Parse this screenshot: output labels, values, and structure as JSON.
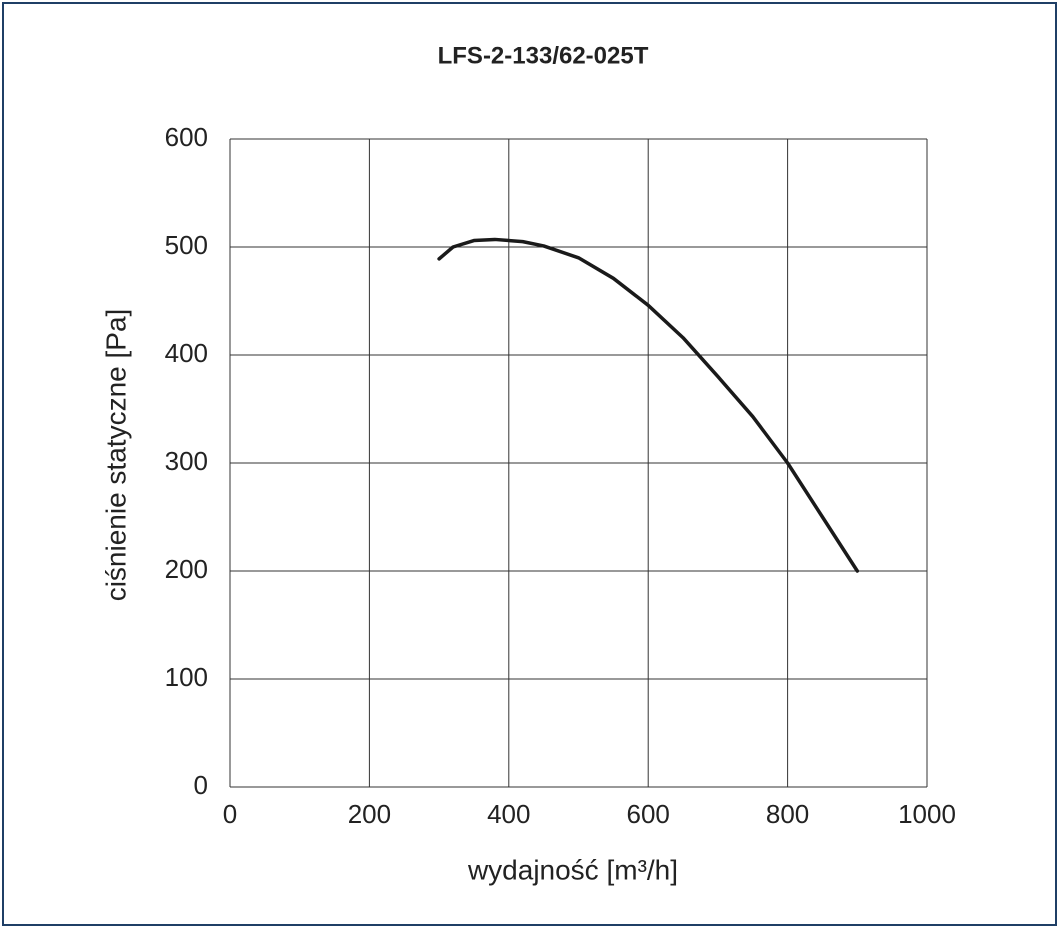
{
  "chart_data": {
    "type": "line",
    "title": "LFS-2-133/62-025T",
    "x_label": "wydajność [m³/h]",
    "y_label": "ciśnienie statyczne [Pa]",
    "x": [
      300,
      320,
      350,
      380,
      420,
      450,
      500,
      550,
      600,
      650,
      700,
      750,
      800,
      850,
      900
    ],
    "values": [
      489,
      500,
      506,
      507,
      505,
      501,
      490,
      471,
      446,
      416,
      380,
      343,
      300,
      250,
      200
    ],
    "color": "#1a1a1a",
    "xlim": [
      0,
      1000
    ],
    "xticks": [
      0,
      200,
      400,
      600,
      800,
      1000
    ],
    "ylim": [
      0,
      600
    ],
    "yticks": [
      0,
      100,
      200,
      300,
      400,
      500,
      600
    ],
    "grid": true
  }
}
